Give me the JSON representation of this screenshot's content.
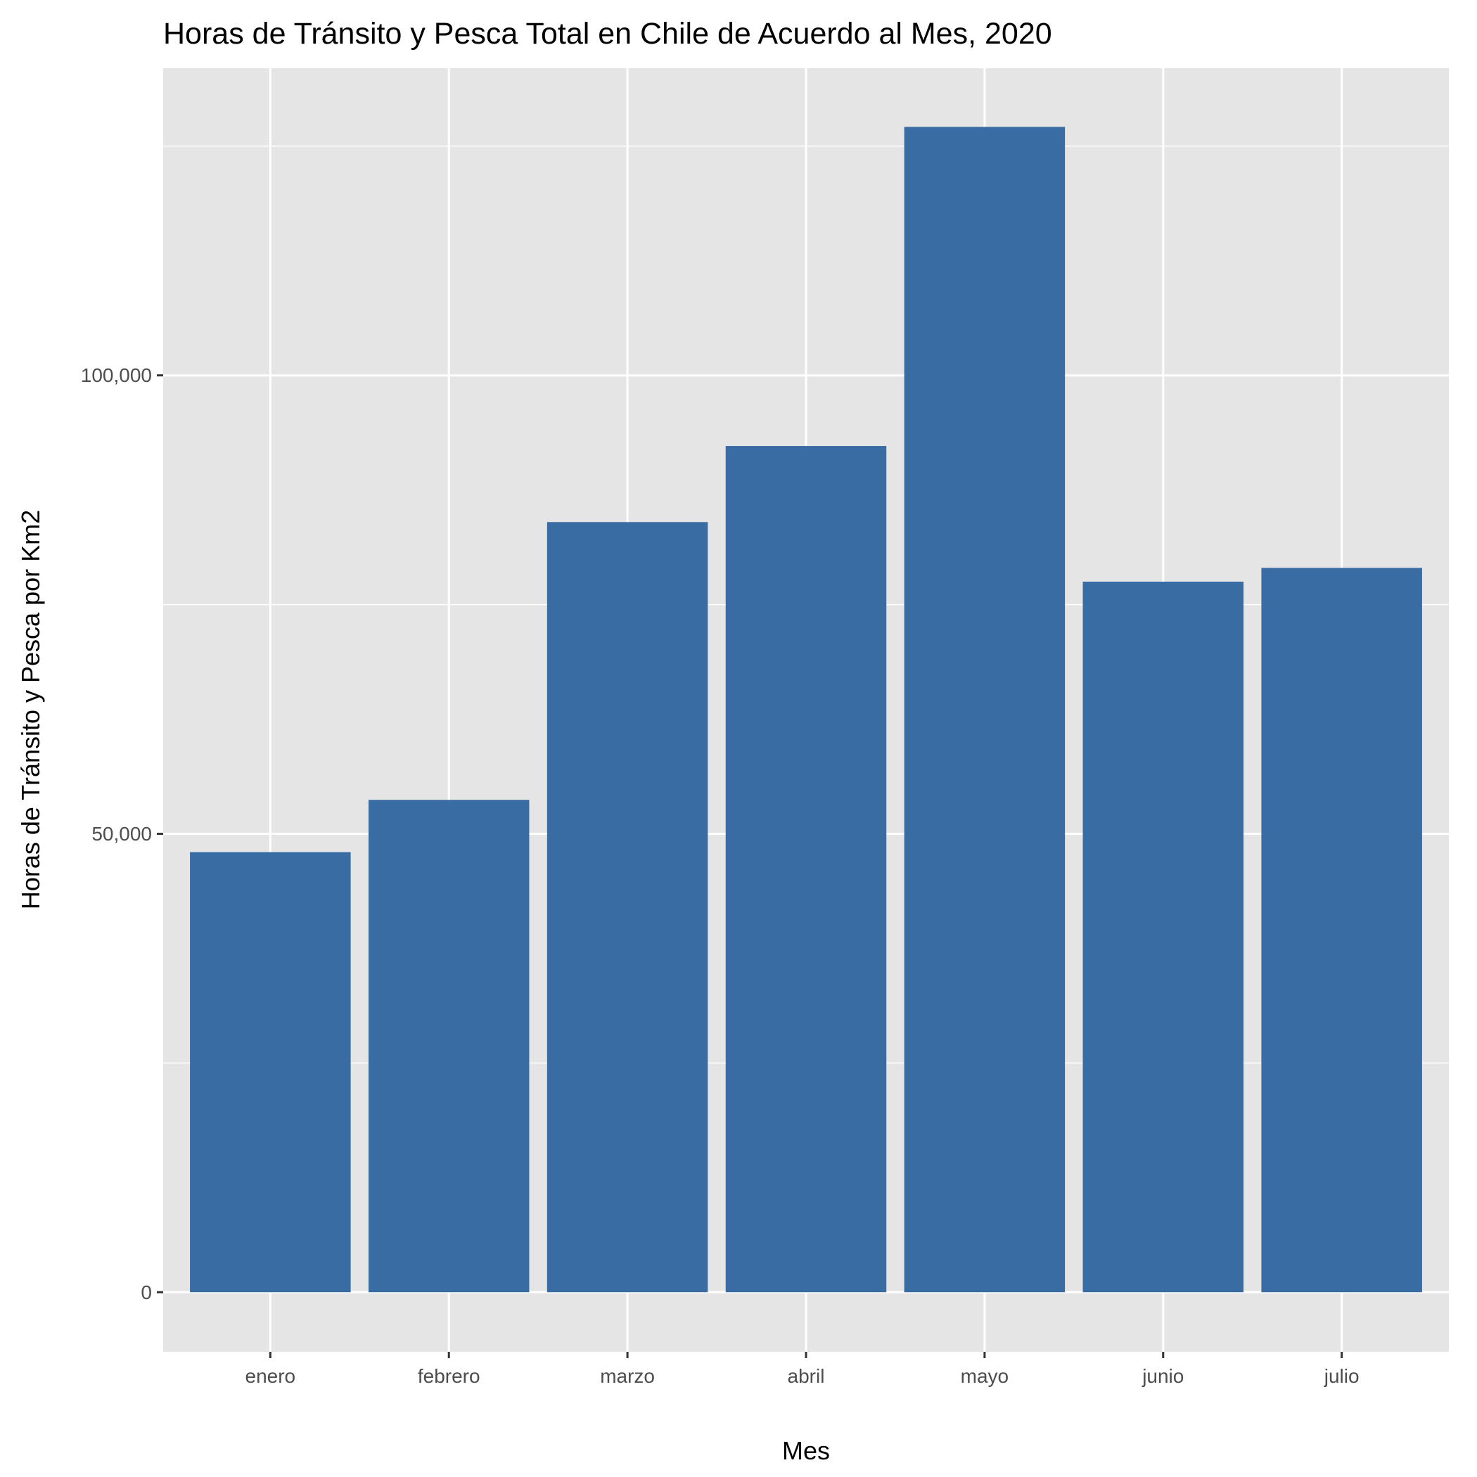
{
  "chart_data": {
    "type": "bar",
    "title": "Horas de Tránsito y Pesca Total en Chile de Acuerdo al Mes, 2020",
    "xlabel": "Mes",
    "ylabel": "Horas de Tránsito y Pesca por Km2",
    "categories": [
      "enero",
      "febrero",
      "marzo",
      "abril",
      "mayo",
      "junio",
      "julio"
    ],
    "values": [
      48000,
      53700,
      84000,
      92300,
      127100,
      77500,
      79000
    ],
    "ylim": [
      -6500,
      133500
    ],
    "y_ticks": [
      {
        "value": 0,
        "label": "0"
      },
      {
        "value": 50000,
        "label": "50,000"
      },
      {
        "value": 100000,
        "label": "100,000"
      }
    ],
    "y_minor_ticks": [
      25000,
      75000,
      125000
    ],
    "grid": true,
    "colors": {
      "bar": "#3a6ca4",
      "panel": "#e5e5e5",
      "grid": "#ffffff",
      "tick": "#333333"
    }
  }
}
